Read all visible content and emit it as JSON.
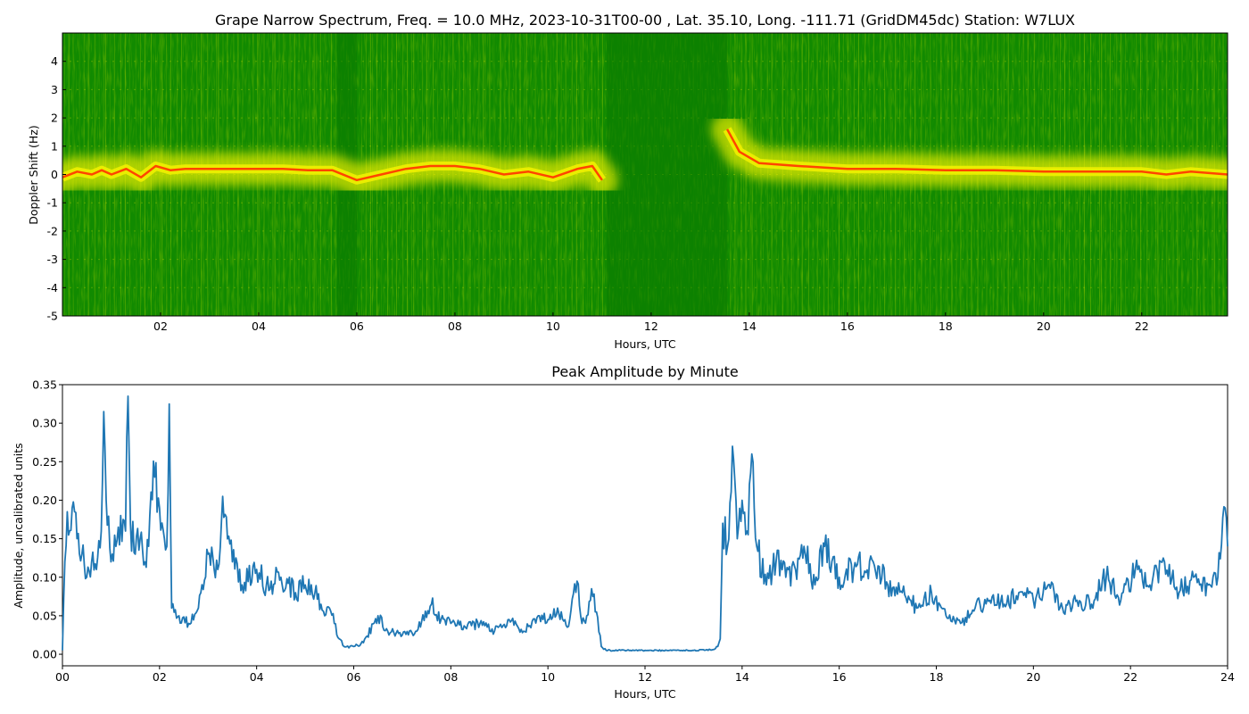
{
  "chart_data": [
    {
      "type": "heatmap",
      "title": "Grape Narrow Spectrum, Freq. = 10.0 MHz, 2023-10-31T00-00 , Lat.  35.10, Long. -111.71 (GridDM45dc) Station: W7LUX",
      "xlabel": "Hours, UTC",
      "ylabel": "Doppler Shift (Hz)",
      "xlim": [
        0,
        23.75
      ],
      "ylim": [
        -5,
        5
      ],
      "x_ticks": [
        2,
        4,
        6,
        8,
        10,
        12,
        14,
        16,
        18,
        20,
        22
      ],
      "x_tick_labels": [
        "02",
        "04",
        "06",
        "08",
        "10",
        "12",
        "14",
        "16",
        "18",
        "20",
        "22"
      ],
      "y_ticks": [
        -5,
        -4,
        -3,
        -2,
        -1,
        0,
        1,
        2,
        3,
        4
      ],
      "y_tick_labels": [
        "-5",
        "-4",
        "-3",
        "-2",
        "-1",
        "0",
        "1",
        "2",
        "3",
        "4"
      ],
      "colors": {
        "background": "#118a00",
        "mid": "#f0f000",
        "peak": "#ff4500"
      },
      "doppler_trace": {
        "x": [
          0,
          0.3,
          0.6,
          0.8,
          1.0,
          1.3,
          1.6,
          1.9,
          2.2,
          2.5,
          3.0,
          3.5,
          4.0,
          4.5,
          5.0,
          5.5,
          6.0,
          6.5,
          7.0,
          7.5,
          8.0,
          8.5,
          9.0,
          9.5,
          10.0,
          10.5,
          10.8,
          11.0,
          13.55,
          13.8,
          14.2,
          14.6,
          15.0,
          15.5,
          16.0,
          17.0,
          18.0,
          19.0,
          20.0,
          21.0,
          22.0,
          22.5,
          23.0,
          23.75
        ],
        "y": [
          -0.1,
          0.1,
          0.0,
          0.15,
          0.0,
          0.2,
          -0.1,
          0.3,
          0.15,
          0.2,
          0.2,
          0.2,
          0.2,
          0.2,
          0.15,
          0.15,
          -0.2,
          0.0,
          0.2,
          0.3,
          0.3,
          0.2,
          0.0,
          0.1,
          -0.1,
          0.2,
          0.3,
          -0.2,
          1.6,
          0.8,
          0.4,
          0.35,
          0.3,
          0.25,
          0.2,
          0.2,
          0.15,
          0.15,
          0.1,
          0.1,
          0.1,
          0.0,
          0.1,
          0.0
        ]
      },
      "signal_gaps": [
        [
          5.6,
          6.0
        ],
        [
          11.1,
          13.55
        ]
      ]
    },
    {
      "type": "line",
      "title": "Peak Amplitude by Minute",
      "xlabel": "Hours, UTC",
      "ylabel": "Amplitude, uncalibrated units",
      "xlim": [
        0,
        24
      ],
      "ylim": [
        -0.015,
        0.35
      ],
      "grid": false,
      "x_ticks": [
        0,
        2,
        4,
        6,
        8,
        10,
        12,
        14,
        16,
        18,
        20,
        22,
        24
      ],
      "x_tick_labels": [
        "00",
        "02",
        "04",
        "06",
        "08",
        "10",
        "12",
        "14",
        "16",
        "18",
        "20",
        "22",
        "24"
      ],
      "y_ticks": [
        0,
        0.05,
        0.1,
        0.15,
        0.2,
        0.25,
        0.3,
        0.35
      ],
      "y_tick_labels": [
        "0.00",
        "0.05",
        "0.10",
        "0.15",
        "0.20",
        "0.25",
        "0.30",
        "0.35"
      ],
      "series_color": "#1f77b4",
      "x": [
        0,
        0.05,
        0.1,
        0.2,
        0.3,
        0.4,
        0.5,
        0.6,
        0.7,
        0.8,
        0.85,
        0.9,
        1.0,
        1.1,
        1.2,
        1.3,
        1.35,
        1.4,
        1.5,
        1.6,
        1.7,
        1.8,
        1.9,
        2.0,
        2.1,
        2.15,
        2.2,
        2.25,
        2.4,
        2.6,
        2.8,
        3.0,
        3.2,
        3.3,
        3.5,
        3.7,
        4.0,
        4.2,
        4.5,
        4.8,
        5.0,
        5.2,
        5.4,
        5.5,
        5.6,
        5.7,
        5.8,
        6.0,
        6.2,
        6.5,
        6.7,
        7.0,
        7.3,
        7.6,
        7.8,
        8.0,
        8.3,
        8.6,
        8.9,
        9.2,
        9.5,
        9.8,
        10.0,
        10.2,
        10.4,
        10.6,
        10.7,
        10.8,
        10.9,
        11.0,
        11.1,
        11.2,
        11.5,
        12.0,
        12.5,
        13.0,
        13.4,
        13.5,
        13.55,
        13.6,
        13.7,
        13.8,
        13.9,
        14.0,
        14.1,
        14.2,
        14.3,
        14.5,
        14.7,
        14.9,
        15.1,
        15.3,
        15.5,
        15.7,
        16.0,
        16.3,
        16.7,
        17.0,
        17.3,
        17.6,
        17.9,
        18.2,
        18.5,
        18.8,
        19.1,
        19.4,
        19.7,
        20.0,
        20.3,
        20.6,
        20.9,
        21.2,
        21.5,
        21.8,
        22.1,
        22.4,
        22.7,
        23.0,
        23.3,
        23.6,
        23.8,
        23.95,
        24.0
      ],
      "values": [
        0.005,
        0.12,
        0.185,
        0.19,
        0.15,
        0.13,
        0.1,
        0.12,
        0.11,
        0.16,
        0.315,
        0.2,
        0.12,
        0.14,
        0.18,
        0.16,
        0.335,
        0.17,
        0.13,
        0.15,
        0.12,
        0.18,
        0.23,
        0.19,
        0.15,
        0.14,
        0.325,
        0.06,
        0.05,
        0.04,
        0.06,
        0.13,
        0.11,
        0.205,
        0.12,
        0.09,
        0.11,
        0.09,
        0.1,
        0.08,
        0.09,
        0.08,
        0.05,
        0.06,
        0.04,
        0.02,
        0.01,
        0.01,
        0.015,
        0.05,
        0.03,
        0.025,
        0.03,
        0.065,
        0.045,
        0.04,
        0.035,
        0.04,
        0.03,
        0.045,
        0.03,
        0.05,
        0.045,
        0.06,
        0.035,
        0.095,
        0.04,
        0.05,
        0.085,
        0.055,
        0.01,
        0.005,
        0.005,
        0.005,
        0.005,
        0.005,
        0.006,
        0.01,
        0.02,
        0.17,
        0.14,
        0.27,
        0.15,
        0.2,
        0.16,
        0.26,
        0.14,
        0.09,
        0.12,
        0.1,
        0.11,
        0.13,
        0.09,
        0.14,
        0.1,
        0.11,
        0.12,
        0.09,
        0.08,
        0.06,
        0.08,
        0.05,
        0.04,
        0.06,
        0.07,
        0.065,
        0.08,
        0.07,
        0.09,
        0.06,
        0.07,
        0.065,
        0.1,
        0.07,
        0.11,
        0.09,
        0.12,
        0.08,
        0.1,
        0.09,
        0.1,
        0.19,
        0.14
      ]
    }
  ]
}
